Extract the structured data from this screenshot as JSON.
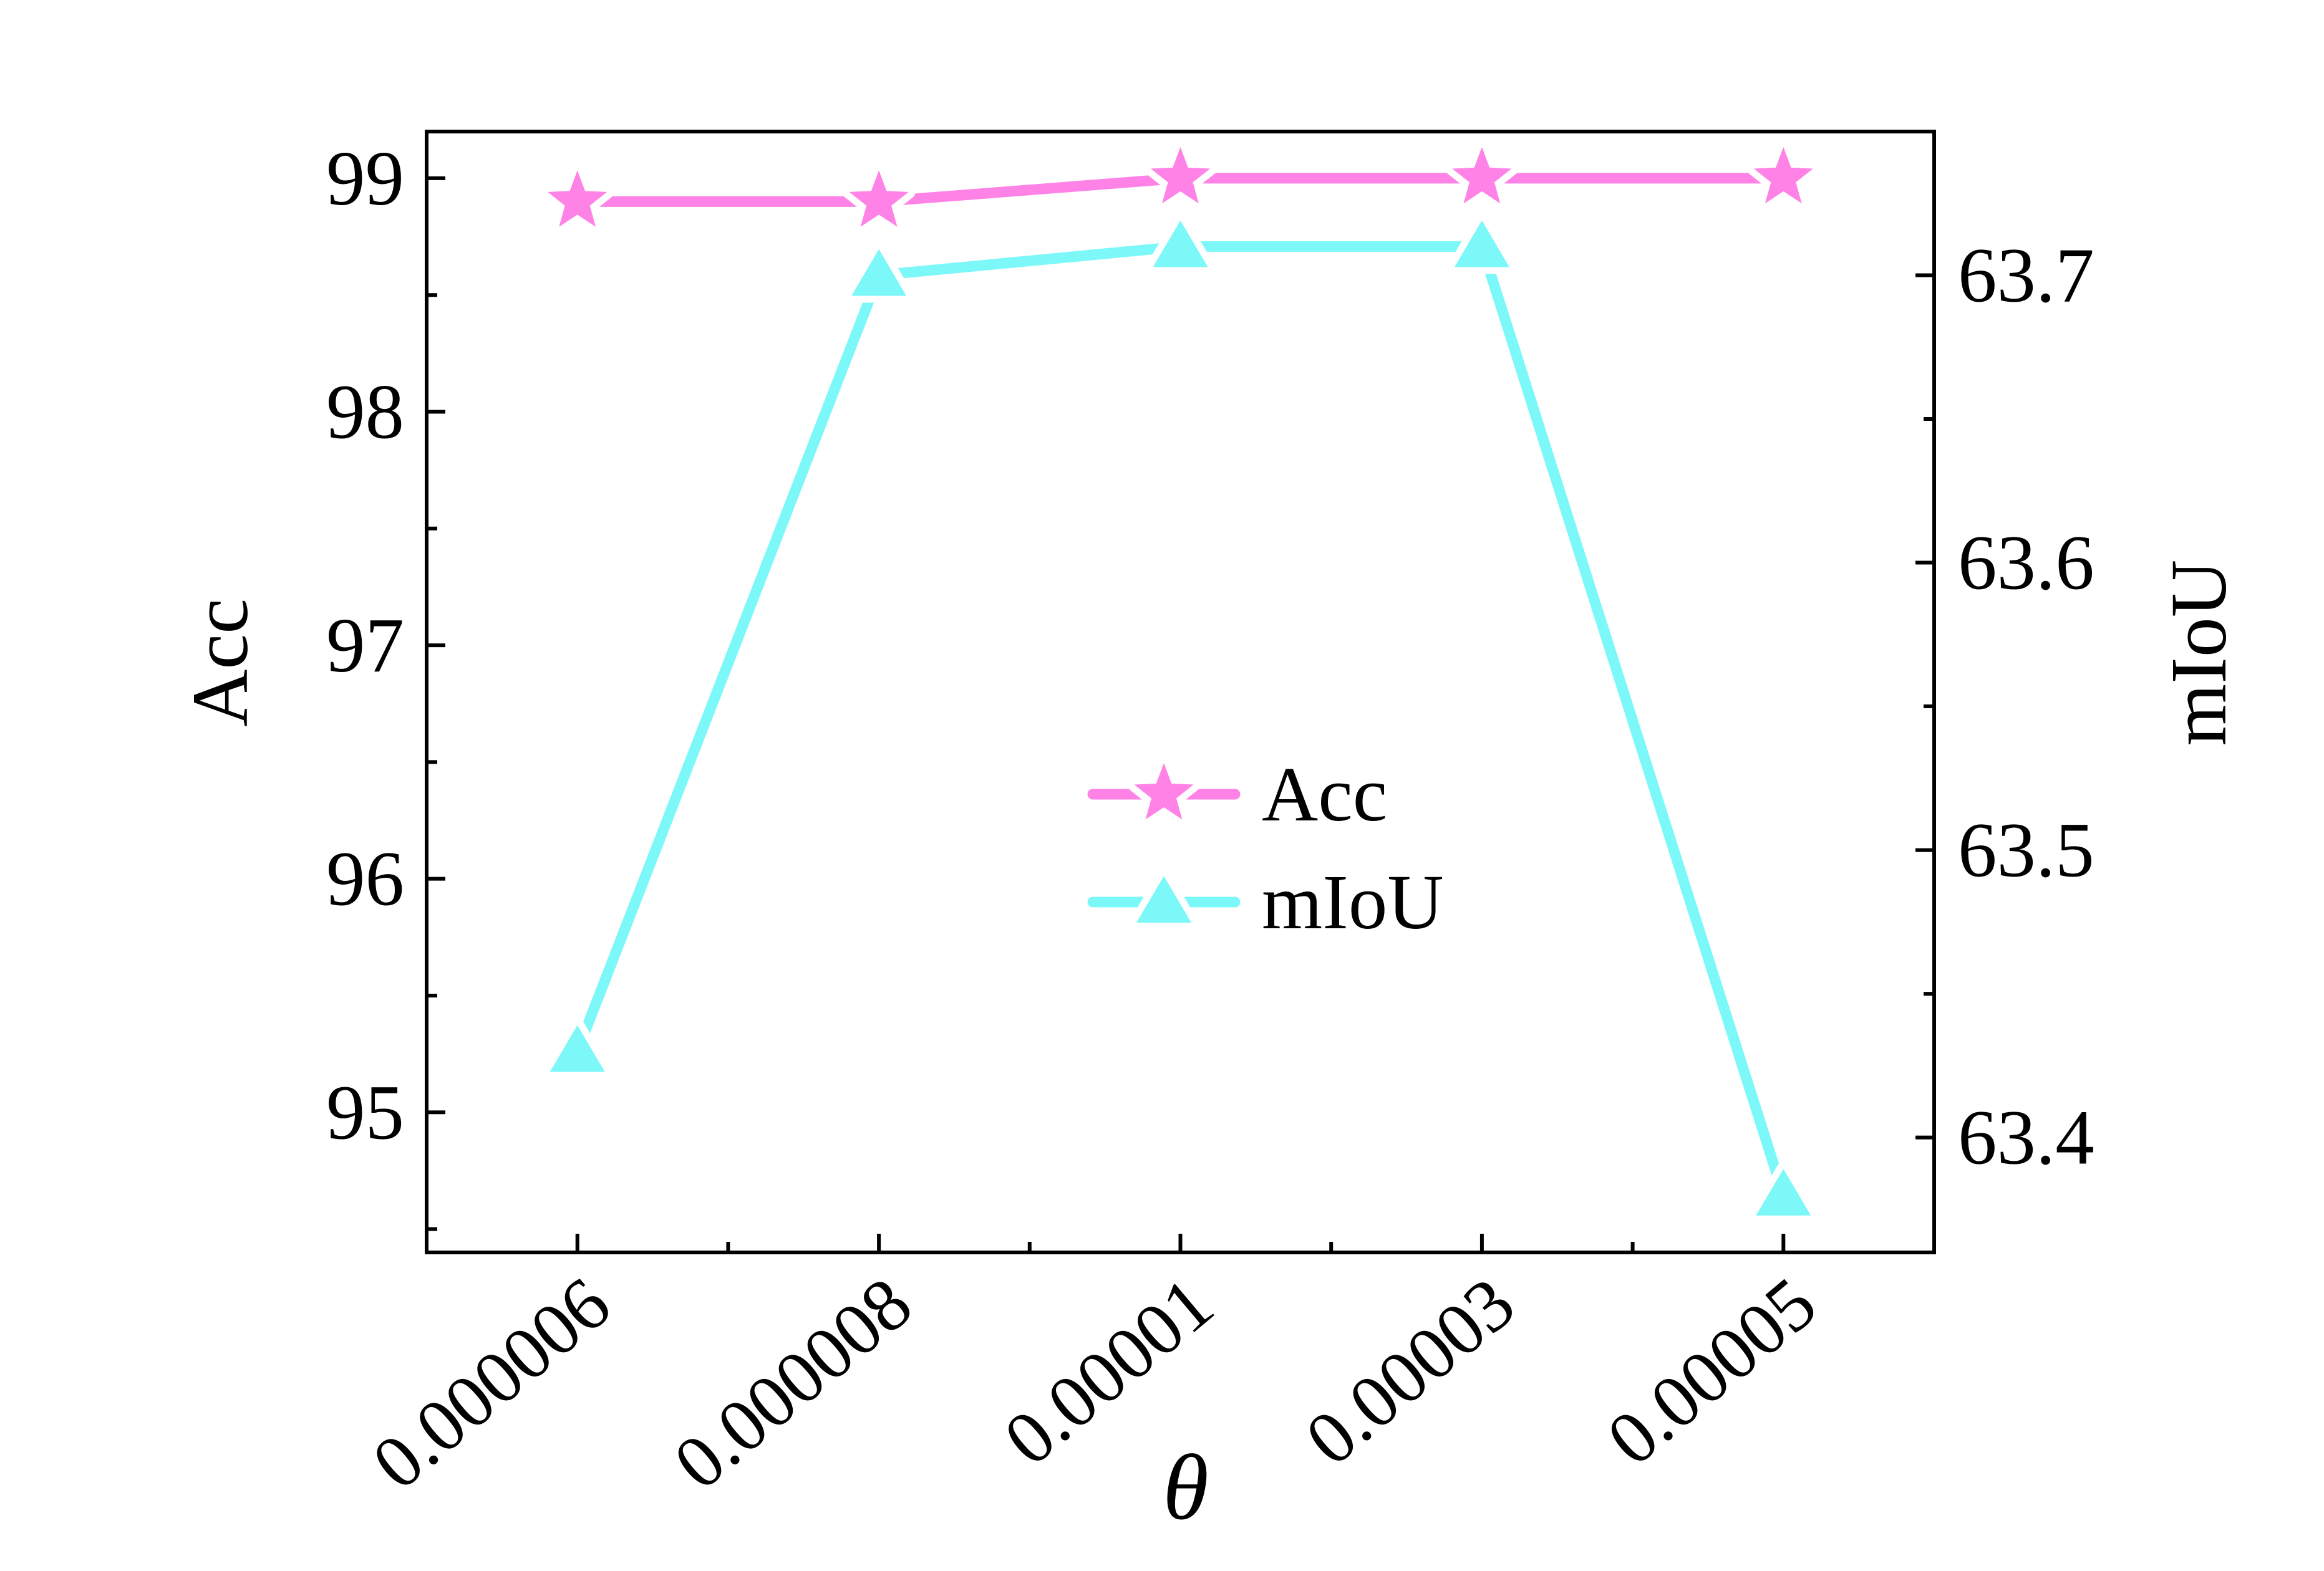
{
  "chart_data": {
    "type": "line",
    "xlabel": "θ",
    "ylabel": "Acc",
    "ylabel_right": "mIoU",
    "categories": [
      "0.000006",
      "0.000008",
      "0.00001",
      "0.00003",
      "0.00005"
    ],
    "series": [
      {
        "name": "Acc",
        "axis": "left",
        "marker": "star",
        "color": "#FF82E6",
        "values": [
          98.9,
          98.9,
          99.0,
          99.0,
          99.0
        ]
      },
      {
        "name": "mIoU",
        "axis": "right",
        "marker": "triangle",
        "color": "#7CF8F8",
        "values": [
          63.43,
          63.7,
          63.71,
          63.71,
          63.38
        ]
      }
    ],
    "ylim": [
      94.4,
      99.2
    ],
    "yticks": [
      "95",
      "96",
      "97",
      "98",
      "99"
    ],
    "ylim_right": [
      63.36,
      63.75
    ],
    "yticks_right": [
      "63.4",
      "63.5",
      "63.6",
      "63.7"
    ],
    "grid": false,
    "legend": "center"
  }
}
